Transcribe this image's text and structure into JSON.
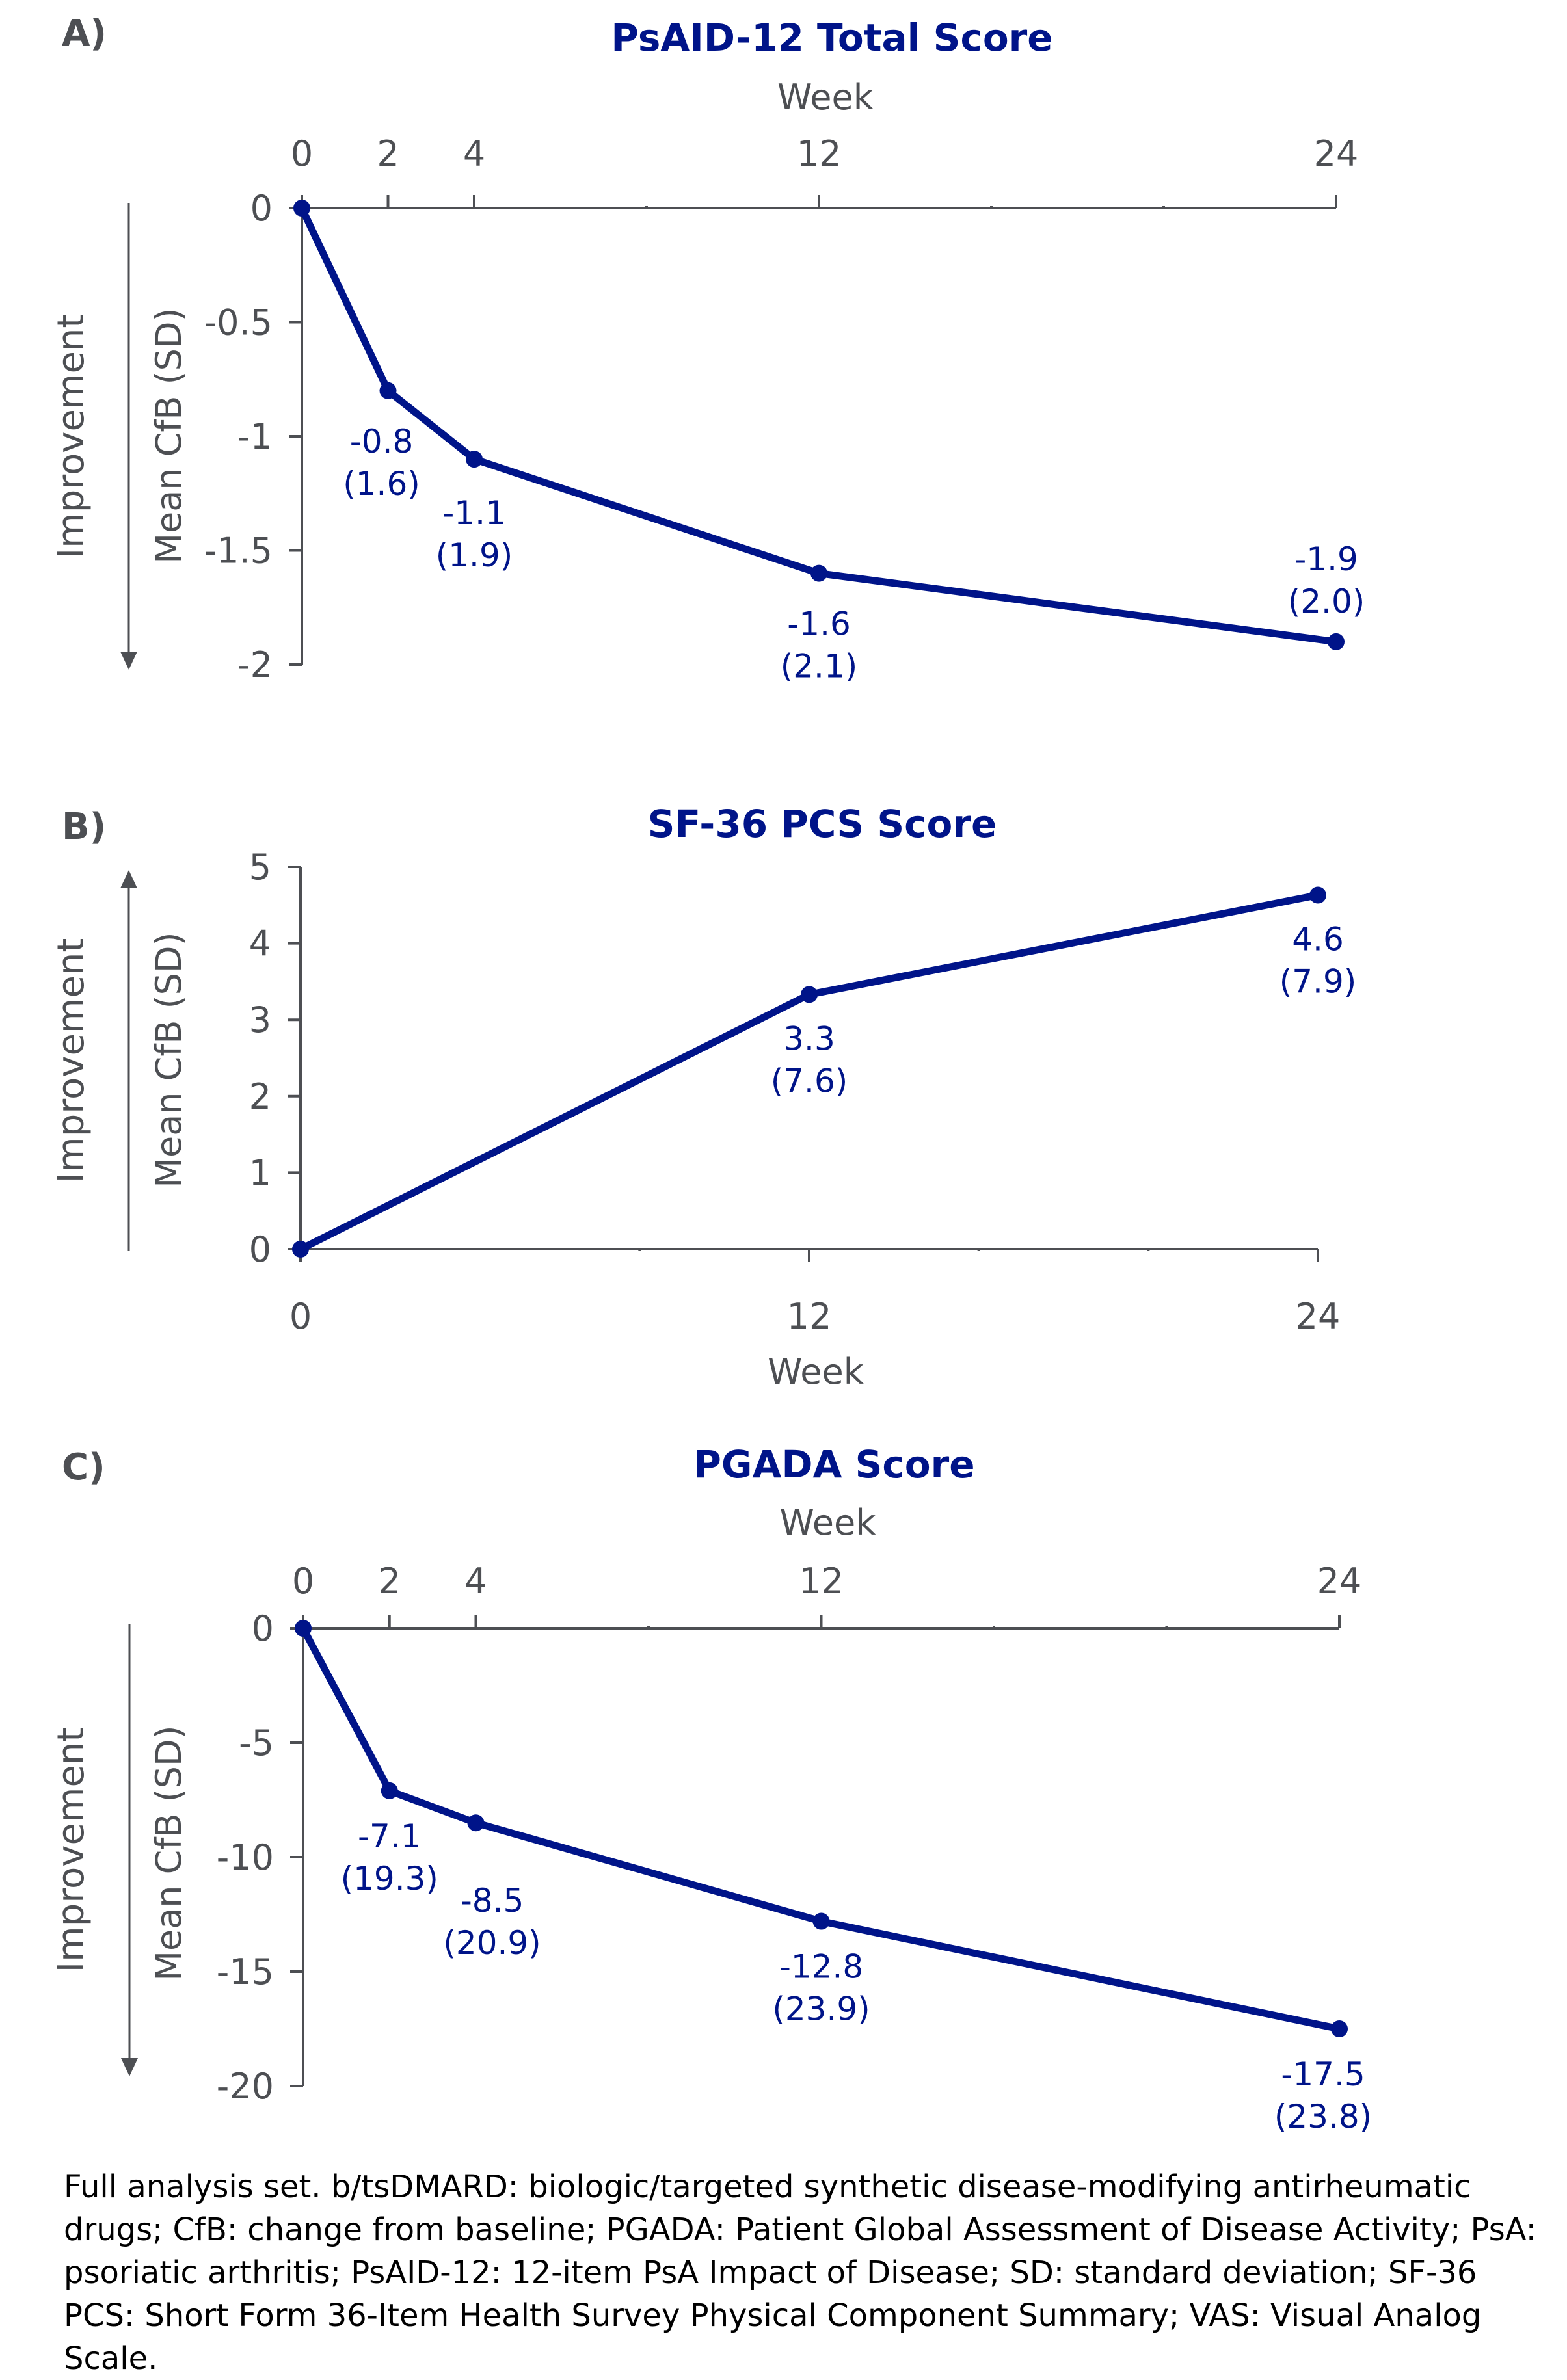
{
  "colors": {
    "series": "#001489",
    "axis": "#4d4f53",
    "title": "#001489"
  },
  "chart_data": [
    {
      "panel": "A)",
      "type": "line",
      "title": "PsAID-12 Total Score",
      "xlabel": "Week",
      "xaxis_position": "top",
      "ylabel": "Mean CfB (SD)",
      "direction_label": "Improvement",
      "direction": "down",
      "x_ticks": [
        0,
        2,
        4,
        12,
        24
      ],
      "x_tick_labels": [
        "0",
        "2",
        "4",
        "12",
        "24"
      ],
      "xlim": [
        0,
        24
      ],
      "y_ticks": [
        0,
        -0.5,
        -1,
        -1.5,
        -2
      ],
      "y_tick_labels": [
        "0",
        "-0.5",
        "-1",
        "-1.5",
        "-2"
      ],
      "ylim": [
        -2,
        0
      ],
      "grid": false,
      "series": [
        {
          "name": "Mean CfB",
          "x": [
            0,
            2,
            4,
            12,
            24
          ],
          "values": [
            0,
            -0.8,
            -1.1,
            -1.6,
            -1.9
          ],
          "labels": [
            null,
            {
              "mean": "-0.8",
              "sd": "(1.6)"
            },
            {
              "mean": "-1.1",
              "sd": "(1.9)"
            },
            {
              "mean": "-1.6",
              "sd": "(2.1)"
            },
            {
              "mean": "-1.9",
              "sd": "(2.0)"
            }
          ]
        }
      ]
    },
    {
      "panel": "B)",
      "type": "line",
      "title": "SF-36 PCS Score",
      "xlabel": "Week",
      "xaxis_position": "bottom",
      "ylabel": "Mean CfB (SD)",
      "direction_label": "Improvement",
      "direction": "up",
      "x_ticks": [
        0,
        12,
        24
      ],
      "x_tick_labels": [
        "0",
        "12",
        "24"
      ],
      "xlim": [
        0,
        24
      ],
      "y_ticks": [
        0,
        1,
        2,
        3,
        4,
        5
      ],
      "y_tick_labels": [
        "0",
        "1",
        "2",
        "3",
        "4",
        "5"
      ],
      "ylim": [
        0,
        5
      ],
      "grid": false,
      "series": [
        {
          "name": "Mean CfB",
          "x": [
            0,
            12,
            24
          ],
          "values": [
            0,
            3.33,
            4.63
          ],
          "labels": [
            null,
            {
              "mean": "3.3",
              "sd": "(7.6)"
            },
            {
              "mean": "4.6",
              "sd": "(7.9)"
            }
          ]
        }
      ]
    },
    {
      "panel": "C)",
      "type": "line",
      "title": "PGADA Score",
      "xlabel": "Week",
      "xaxis_position": "top",
      "ylabel": "Mean CfB (SD)",
      "direction_label": "Improvement",
      "direction": "down",
      "x_ticks": [
        0,
        2,
        4,
        12,
        24
      ],
      "x_tick_labels": [
        "0",
        "2",
        "4",
        "12",
        "24"
      ],
      "xlim": [
        0,
        24
      ],
      "y_ticks": [
        0,
        -5,
        -10,
        -15,
        -20
      ],
      "y_tick_labels": [
        "0",
        "-5",
        "-10",
        "-15",
        "-20"
      ],
      "ylim": [
        -20,
        0
      ],
      "grid": false,
      "series": [
        {
          "name": "Mean CfB",
          "x": [
            0,
            2,
            4,
            12,
            24
          ],
          "values": [
            0,
            -7.1,
            -8.5,
            -12.8,
            -17.5
          ],
          "labels": [
            null,
            {
              "mean": "-7.1",
              "sd": "(19.3)"
            },
            {
              "mean": "-8.5",
              "sd": "(20.9)"
            },
            {
              "mean": "-12.8",
              "sd": "(23.9)"
            },
            {
              "mean": "-17.5",
              "sd": "(23.8)"
            }
          ]
        }
      ]
    }
  ],
  "footnote": "Full analysis set. b/tsDMARD: biologic/targeted synthetic disease-modifying antirheumatic drugs; CfB: change from baseline; PGADA: Patient Global Assessment of Disease Activity; PsA: psoriatic arthritis; PsAID-12: 12-item PsA Impact of Disease; SD: standard deviation; SF-36 PCS: Short Form 36-Item Health Survey Physical Component Summary; VAS: Visual Analog Scale."
}
